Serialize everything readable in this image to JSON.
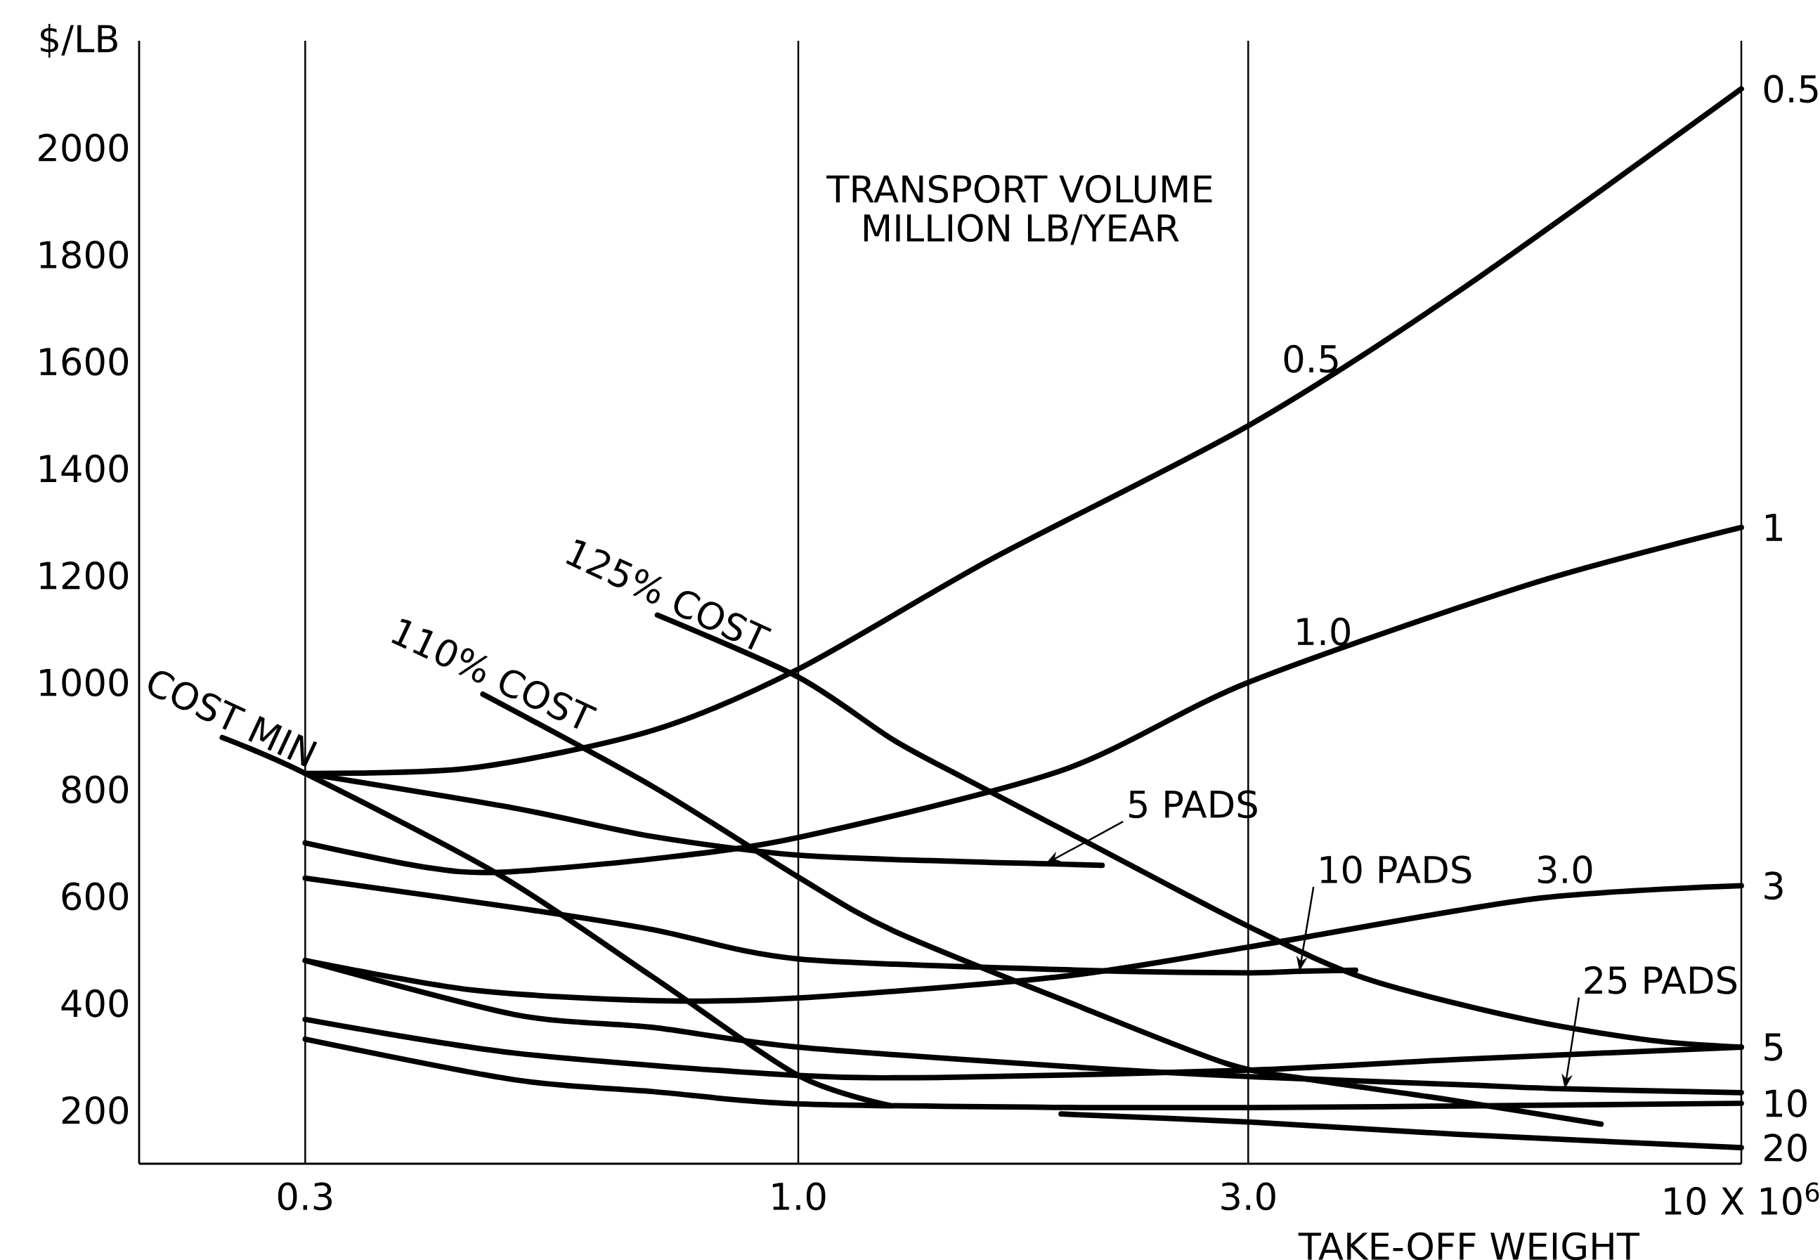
{
  "chart_data": {
    "type": "line",
    "xlabel": "TAKE-OFF WEIGHT",
    "ylabel": "$/LB",
    "annotations": [
      "TRANSPORT VOLUME",
      "MILLION LB/YEAR",
      {
        "text": "0.5",
        "x": 3.5,
        "y": 1555
      },
      {
        "text": "1.0",
        "x": 3.6,
        "y": 1045
      },
      {
        "text": "3.0",
        "x": 6.5,
        "y": 600
      },
      {
        "text": "5 PADS",
        "x": 1.83,
        "y": 661
      },
      {
        "text": "10 PADS",
        "x": 3.4,
        "y": 460
      },
      {
        "text": "25 PADS",
        "x": 6.5,
        "y": 240
      }
    ],
    "log": "x",
    "xlim": [
      0.2,
      10
    ],
    "ylim": [
      100,
      2200
    ],
    "xticks": [
      0.3,
      {
        "value": 1,
        "label": "1.0"
      },
      {
        "value": 3,
        "label": "3.0"
      },
      {
        "value": 10,
        "label": "10 X 10$^{6}$"
      }
    ],
    "yticks": [
      200,
      400,
      600,
      800,
      1000,
      1200,
      1400,
      1600,
      1800,
      2000
    ],
    "grid": "x",
    "series": [
      {
        "name": "0.5",
        "color": "#000000",
        "x": [
          0.3,
          0.45,
          0.7,
          1.0,
          1.6,
          3.0,
          5.0,
          10
        ],
        "values": [
          830,
          840,
          910,
          1025,
          1230,
          1480,
          1730,
          2110
        ]
      },
      {
        "name": "1",
        "color": "#000000",
        "x": [
          0.3,
          0.4,
          0.48,
          0.7,
          1.0,
          1.9,
          3.0,
          6.0,
          10
        ],
        "values": [
          700,
          655,
          645,
          670,
          710,
          835,
          1000,
          1185,
          1290
        ]
      },
      {
        "name": "3",
        "color": "#000000",
        "x": [
          0.3,
          0.45,
          0.7,
          1.0,
          1.9,
          3.0,
          6.0,
          10
        ],
        "values": [
          480,
          425,
          405,
          410,
          450,
          505,
          595,
          620
        ]
      },
      {
        "name": "5",
        "color": "#000000",
        "x": [
          0.3,
          0.5,
          1.0,
          1.5,
          3.0,
          5.0,
          10
        ],
        "values": [
          370,
          307,
          265,
          262,
          275,
          295,
          318
        ]
      },
      {
        "name": "10",
        "color": "#000000",
        "x": [
          0.3,
          0.5,
          0.7,
          1.0,
          2.0,
          3.0,
          5.0,
          10
        ],
        "values": [
          333,
          257,
          235,
          212,
          205,
          205,
          208,
          213
        ]
      },
      {
        "name": "20",
        "color": "#000000",
        "x": [
          1.9,
          3.0,
          5.0,
          10
        ],
        "values": [
          193,
          178,
          155,
          130
        ]
      },
      {
        "color": "#000000",
        "x": [
          0.3,
          0.5,
          0.7,
          1.0,
          1.5,
          1.83,
          2.1
        ],
        "values": [
          830,
          765,
          712,
          677,
          665,
          661,
          658
        ]
      },
      {
        "color": "#000000",
        "x": [
          0.3,
          0.5,
          0.7,
          1.0,
          2.0,
          3.0,
          3.4,
          3.9
        ],
        "values": [
          634,
          579,
          538,
          483,
          462,
          457,
          460,
          462
        ]
      },
      {
        "color": "#000000",
        "x": [
          0.3,
          0.5,
          0.7,
          1.0,
          2.0,
          3.0,
          5.0,
          6.5,
          10
        ],
        "values": [
          480,
          379,
          355,
          318,
          280,
          263,
          248,
          240,
          233
        ]
      },
      {
        "name": "COST MIN",
        "color": "#000000",
        "x": [
          0.245,
          0.3,
          0.48,
          0.7,
          1.0,
          1.25
        ],
        "values": [
          897,
          830,
          642,
          450,
          265,
          209
        ]
      },
      {
        "name": "110% COST",
        "color": "#000000",
        "x": [
          0.463,
          0.7,
          1.0,
          1.26,
          2.0,
          2.85,
          3.5,
          4.8,
          7.1
        ],
        "values": [
          978,
          806,
          636,
          536,
          392,
          287,
          257,
          222,
          174
        ]
      },
      {
        "name": "125% COST",
        "color": "#000000",
        "x": [
          0.709,
          1.0,
          1.26,
          1.5,
          2.0,
          3.0,
          4.0,
          5.9,
          8.0,
          10
        ],
        "values": [
          1126,
          1010,
          893,
          821,
          706,
          544,
          446,
          370,
          331,
          318
        ]
      }
    ]
  }
}
